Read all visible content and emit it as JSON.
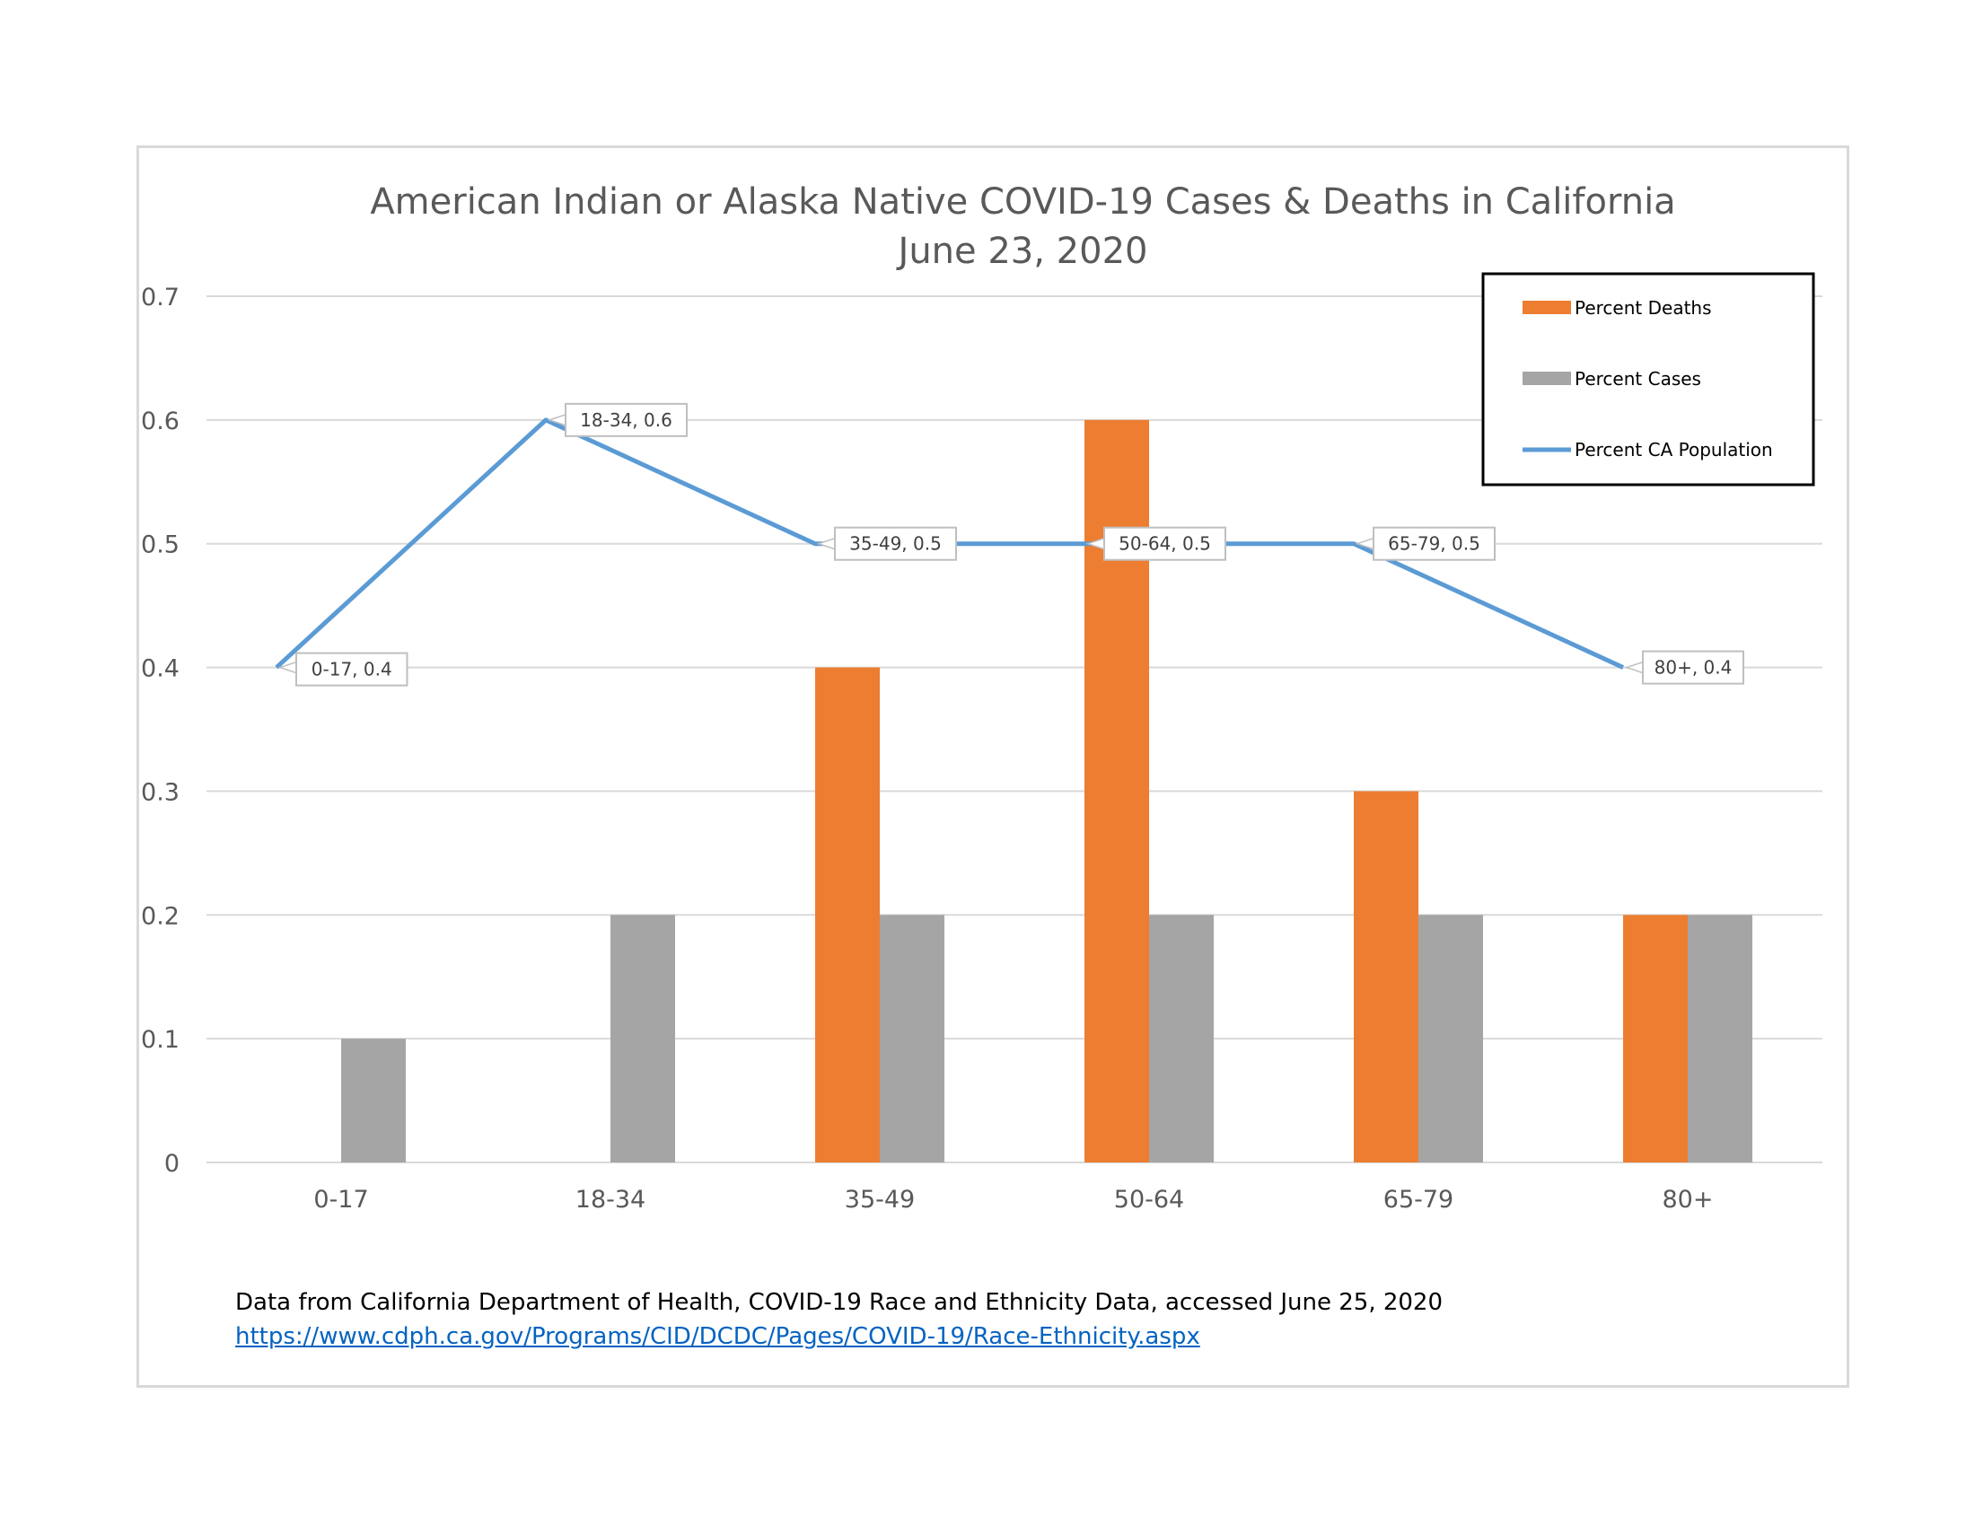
{
  "chart_data": {
    "type": "bar",
    "title": "American Indian or Alaska Native COVID-19 Cases & Deaths in California",
    "subtitle": "June 23, 2020",
    "categories": [
      "0-17",
      "18-34",
      "35-49",
      "50-64",
      "65-79",
      "80+"
    ],
    "series": [
      {
        "name": "Percent Deaths",
        "type": "bar",
        "color": "#ed7d31",
        "values": [
          0,
          0,
          0.4,
          0.6,
          0.3,
          0.2
        ]
      },
      {
        "name": "Percent Cases",
        "type": "bar",
        "color": "#a5a5a5",
        "values": [
          0.1,
          0.2,
          0.2,
          0.2,
          0.2,
          0.2
        ]
      },
      {
        "name": "Percent CA Population",
        "type": "line",
        "color": "#5b9bd5",
        "values": [
          0.4,
          0.6,
          0.5,
          0.5,
          0.5,
          0.4
        ]
      }
    ],
    "data_labels": [
      "0-17, 0.4",
      "18-34, 0.6",
      "35-49, 0.5",
      "50-64, 0.5",
      "65-79, 0.5",
      "80+, 0.4"
    ],
    "yticks": [
      "0",
      "0.1",
      "0.2",
      "0.3",
      "0.4",
      "0.5",
      "0.6",
      "0.7"
    ],
    "ylim": [
      0,
      0.7
    ],
    "grid": true,
    "legend_position": "top-right"
  },
  "source": {
    "text": "Data from California Department of Health, COVID-19 Race and Ethnicity Data, accessed June 25, 2020",
    "link": "https://www.cdph.ca.gov/Programs/CID/DCDC/Pages/COVID-19/Race-Ethnicity.aspx"
  }
}
